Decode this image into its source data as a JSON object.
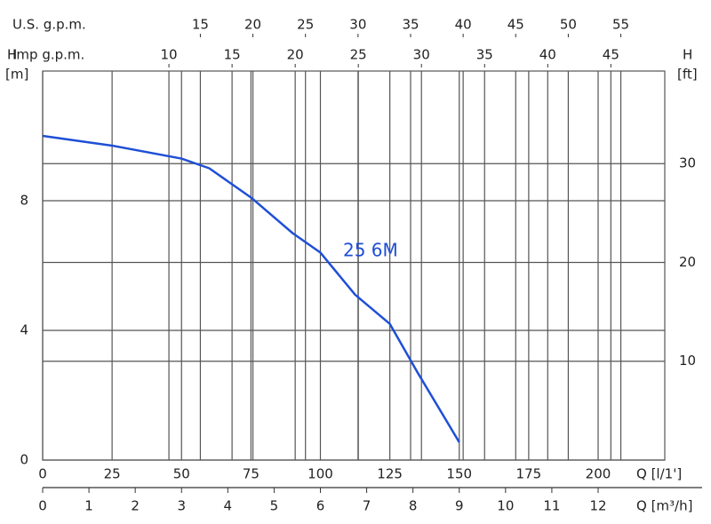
{
  "chart_data": {
    "type": "line",
    "x": [
      0,
      25,
      50,
      60,
      75,
      90,
      100,
      112.5,
      125,
      135,
      150
    ],
    "series": [
      {
        "name": "25 6M",
        "color": "#1f4fd6",
        "values": [
          10,
          9.7,
          9.3,
          9.0,
          8.1,
          7.0,
          6.4,
          5.1,
          4.2,
          2.7,
          0.55
        ]
      }
    ],
    "xlabel": "Q [l/1']",
    "xlim": [
      0,
      224
    ],
    "xticks": [
      0,
      25,
      50,
      75,
      100,
      125,
      150,
      175,
      200
    ],
    "ylabel": "H",
    "yunit": "[m]",
    "ylim": [
      0,
      12
    ],
    "yticks": [
      0,
      4,
      8
    ],
    "y2label": "H",
    "y2unit": "[ft]",
    "y2lim": [
      0,
      39.37
    ],
    "y2ticks": [
      10,
      20,
      30
    ],
    "x_axes": [
      {
        "label": "Q [m³/h]",
        "position": "bottom",
        "lim": [
          0,
          13.44
        ],
        "ticks": [
          0,
          1,
          2,
          3,
          4,
          5,
          6,
          7,
          8,
          9,
          10,
          11,
          12
        ]
      },
      {
        "label": "U.S. g.p.m.",
        "position": "top",
        "lim": [
          0,
          59.18
        ],
        "ticks": [
          15,
          20,
          25,
          30,
          35,
          40,
          45,
          50,
          55
        ]
      },
      {
        "label": "Imp g.p.m.",
        "position": "top",
        "lim": [
          0,
          49.27
        ],
        "ticks": [
          10,
          15,
          20,
          25,
          30,
          35,
          40,
          45
        ]
      }
    ],
    "grid": true
  }
}
